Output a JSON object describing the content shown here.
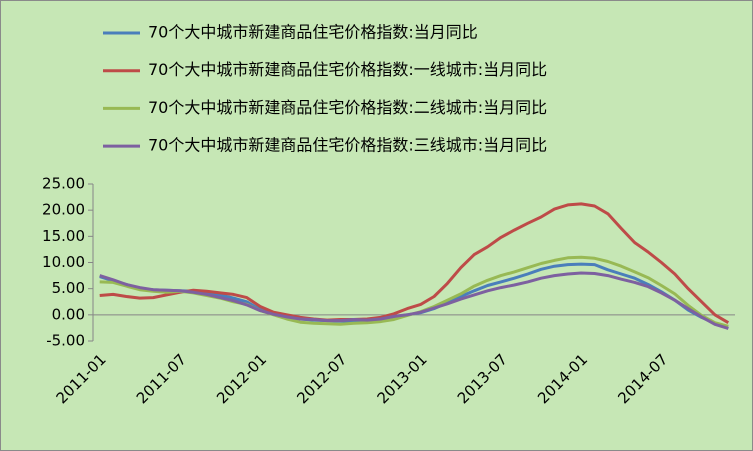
{
  "chart_data": {
    "type": "line",
    "categories": [
      "2011-01",
      null,
      null,
      null,
      null,
      null,
      "2011-07",
      null,
      null,
      null,
      null,
      null,
      "2012-01",
      null,
      null,
      null,
      null,
      null,
      "2012-07",
      null,
      null,
      null,
      null,
      null,
      "2013-01",
      null,
      null,
      null,
      null,
      null,
      "2013-07",
      null,
      null,
      null,
      null,
      null,
      "2014-01",
      null,
      null,
      null,
      null,
      null,
      "2014-07",
      null,
      null,
      null,
      null,
      null
    ],
    "series": [
      {
        "name": "70个大中城市新建商品住宅价格指数:当月同比",
        "color": "#4a7ebb",
        "values": [
          7.3,
          6.5,
          5.8,
          5.0,
          4.8,
          4.7,
          4.6,
          4.5,
          4.2,
          3.8,
          3.2,
          2.5,
          1.0,
          0.2,
          -0.3,
          -0.8,
          -1.0,
          -1.1,
          -1.2,
          -1.2,
          -1.1,
          -0.9,
          -0.4,
          0.0,
          0.4,
          1.2,
          2.3,
          3.5,
          4.6,
          5.6,
          6.3,
          7.0,
          7.8,
          8.7,
          9.3,
          9.6,
          9.7,
          9.6,
          8.6,
          7.8,
          7.0,
          5.8,
          4.4,
          2.8,
          0.9,
          -0.5,
          -1.6,
          -2.6
        ]
      },
      {
        "name": "70个大中城市新建商品住宅价格指数:一线城市:当月同比",
        "color": "#be4b48",
        "values": [
          3.7,
          3.9,
          3.5,
          3.2,
          3.3,
          3.8,
          4.3,
          4.7,
          4.5,
          4.2,
          3.9,
          3.3,
          1.6,
          0.5,
          0.0,
          -0.5,
          -0.8,
          -1.0,
          -0.9,
          -0.9,
          -0.8,
          -0.5,
          0.2,
          1.2,
          2.0,
          3.5,
          6.0,
          9.0,
          11.5,
          13.0,
          14.8,
          16.2,
          17.5,
          18.7,
          20.2,
          21.0,
          21.2,
          20.8,
          19.3,
          16.5,
          13.8,
          12.0,
          10.0,
          7.8,
          5.0,
          2.5,
          0.0,
          -1.5
        ]
      },
      {
        "name": "70个大中城市新建商品住宅价格指数:二线城市:当月同比",
        "color": "#98b954",
        "values": [
          6.3,
          6.2,
          5.5,
          4.8,
          4.5,
          4.3,
          4.5,
          4.2,
          3.7,
          3.2,
          2.5,
          2.0,
          0.8,
          0.0,
          -0.8,
          -1.4,
          -1.6,
          -1.7,
          -1.8,
          -1.6,
          -1.5,
          -1.3,
          -0.9,
          -0.1,
          0.6,
          1.6,
          2.8,
          4.0,
          5.5,
          6.6,
          7.5,
          8.2,
          9.0,
          9.8,
          10.4,
          10.9,
          11.0,
          10.8,
          10.2,
          9.3,
          8.2,
          7.1,
          5.6,
          4.0,
          1.8,
          -0.1,
          -1.5,
          -2.2
        ]
      },
      {
        "name": "70个大中城市新建商品住宅价格指数:三线城市:当月同比",
        "color": "#7d60a0",
        "values": [
          7.5,
          6.7,
          5.8,
          5.2,
          4.8,
          4.7,
          4.6,
          4.3,
          3.9,
          3.3,
          2.7,
          1.9,
          0.8,
          0.1,
          -0.4,
          -0.8,
          -0.9,
          -1.1,
          -1.1,
          -0.9,
          -1.0,
          -0.8,
          -0.3,
          0.0,
          0.5,
          1.3,
          2.1,
          3.0,
          3.8,
          4.6,
          5.2,
          5.7,
          6.3,
          7.0,
          7.5,
          7.8,
          8.0,
          7.9,
          7.5,
          6.8,
          6.2,
          5.4,
          4.2,
          2.8,
          1.2,
          -0.4,
          -1.8,
          -2.6
        ]
      }
    ],
    "ylim": [
      -5,
      25
    ],
    "yticks": [
      {
        "value": -5,
        "label": "-5.00"
      },
      {
        "value": 0,
        "label": "0.00"
      },
      {
        "value": 5,
        "label": "5.00"
      },
      {
        "value": 10,
        "label": "10.00"
      },
      {
        "value": 15,
        "label": "15.00"
      },
      {
        "value": 20,
        "label": "20.00"
      },
      {
        "value": 25,
        "label": "25.00"
      }
    ],
    "grid": false
  }
}
